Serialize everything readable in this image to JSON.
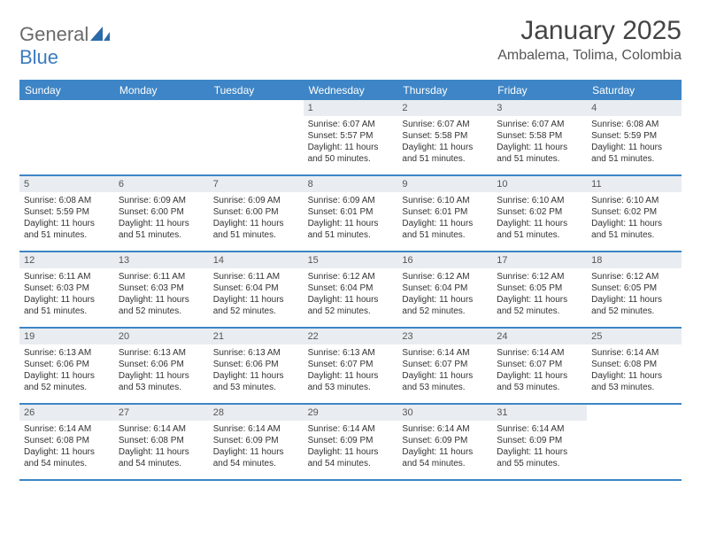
{
  "logo": {
    "text_gray": "General",
    "text_blue": "Blue"
  },
  "title": "January 2025",
  "location": "Ambalema, Tolima, Colombia",
  "header_bg": "#3d85c6",
  "daynum_bg": "#e9edf1",
  "border_color": "#3d85c6",
  "day_names": [
    "Sunday",
    "Monday",
    "Tuesday",
    "Wednesday",
    "Thursday",
    "Friday",
    "Saturday"
  ],
  "weeks": [
    [
      null,
      null,
      null,
      {
        "n": "1",
        "sunrise": "Sunrise: 6:07 AM",
        "sunset": "Sunset: 5:57 PM",
        "daylight": "Daylight: 11 hours and 50 minutes."
      },
      {
        "n": "2",
        "sunrise": "Sunrise: 6:07 AM",
        "sunset": "Sunset: 5:58 PM",
        "daylight": "Daylight: 11 hours and 51 minutes."
      },
      {
        "n": "3",
        "sunrise": "Sunrise: 6:07 AM",
        "sunset": "Sunset: 5:58 PM",
        "daylight": "Daylight: 11 hours and 51 minutes."
      },
      {
        "n": "4",
        "sunrise": "Sunrise: 6:08 AM",
        "sunset": "Sunset: 5:59 PM",
        "daylight": "Daylight: 11 hours and 51 minutes."
      }
    ],
    [
      {
        "n": "5",
        "sunrise": "Sunrise: 6:08 AM",
        "sunset": "Sunset: 5:59 PM",
        "daylight": "Daylight: 11 hours and 51 minutes."
      },
      {
        "n": "6",
        "sunrise": "Sunrise: 6:09 AM",
        "sunset": "Sunset: 6:00 PM",
        "daylight": "Daylight: 11 hours and 51 minutes."
      },
      {
        "n": "7",
        "sunrise": "Sunrise: 6:09 AM",
        "sunset": "Sunset: 6:00 PM",
        "daylight": "Daylight: 11 hours and 51 minutes."
      },
      {
        "n": "8",
        "sunrise": "Sunrise: 6:09 AM",
        "sunset": "Sunset: 6:01 PM",
        "daylight": "Daylight: 11 hours and 51 minutes."
      },
      {
        "n": "9",
        "sunrise": "Sunrise: 6:10 AM",
        "sunset": "Sunset: 6:01 PM",
        "daylight": "Daylight: 11 hours and 51 minutes."
      },
      {
        "n": "10",
        "sunrise": "Sunrise: 6:10 AM",
        "sunset": "Sunset: 6:02 PM",
        "daylight": "Daylight: 11 hours and 51 minutes."
      },
      {
        "n": "11",
        "sunrise": "Sunrise: 6:10 AM",
        "sunset": "Sunset: 6:02 PM",
        "daylight": "Daylight: 11 hours and 51 minutes."
      }
    ],
    [
      {
        "n": "12",
        "sunrise": "Sunrise: 6:11 AM",
        "sunset": "Sunset: 6:03 PM",
        "daylight": "Daylight: 11 hours and 51 minutes."
      },
      {
        "n": "13",
        "sunrise": "Sunrise: 6:11 AM",
        "sunset": "Sunset: 6:03 PM",
        "daylight": "Daylight: 11 hours and 52 minutes."
      },
      {
        "n": "14",
        "sunrise": "Sunrise: 6:11 AM",
        "sunset": "Sunset: 6:04 PM",
        "daylight": "Daylight: 11 hours and 52 minutes."
      },
      {
        "n": "15",
        "sunrise": "Sunrise: 6:12 AM",
        "sunset": "Sunset: 6:04 PM",
        "daylight": "Daylight: 11 hours and 52 minutes."
      },
      {
        "n": "16",
        "sunrise": "Sunrise: 6:12 AM",
        "sunset": "Sunset: 6:04 PM",
        "daylight": "Daylight: 11 hours and 52 minutes."
      },
      {
        "n": "17",
        "sunrise": "Sunrise: 6:12 AM",
        "sunset": "Sunset: 6:05 PM",
        "daylight": "Daylight: 11 hours and 52 minutes."
      },
      {
        "n": "18",
        "sunrise": "Sunrise: 6:12 AM",
        "sunset": "Sunset: 6:05 PM",
        "daylight": "Daylight: 11 hours and 52 minutes."
      }
    ],
    [
      {
        "n": "19",
        "sunrise": "Sunrise: 6:13 AM",
        "sunset": "Sunset: 6:06 PM",
        "daylight": "Daylight: 11 hours and 52 minutes."
      },
      {
        "n": "20",
        "sunrise": "Sunrise: 6:13 AM",
        "sunset": "Sunset: 6:06 PM",
        "daylight": "Daylight: 11 hours and 53 minutes."
      },
      {
        "n": "21",
        "sunrise": "Sunrise: 6:13 AM",
        "sunset": "Sunset: 6:06 PM",
        "daylight": "Daylight: 11 hours and 53 minutes."
      },
      {
        "n": "22",
        "sunrise": "Sunrise: 6:13 AM",
        "sunset": "Sunset: 6:07 PM",
        "daylight": "Daylight: 11 hours and 53 minutes."
      },
      {
        "n": "23",
        "sunrise": "Sunrise: 6:14 AM",
        "sunset": "Sunset: 6:07 PM",
        "daylight": "Daylight: 11 hours and 53 minutes."
      },
      {
        "n": "24",
        "sunrise": "Sunrise: 6:14 AM",
        "sunset": "Sunset: 6:07 PM",
        "daylight": "Daylight: 11 hours and 53 minutes."
      },
      {
        "n": "25",
        "sunrise": "Sunrise: 6:14 AM",
        "sunset": "Sunset: 6:08 PM",
        "daylight": "Daylight: 11 hours and 53 minutes."
      }
    ],
    [
      {
        "n": "26",
        "sunrise": "Sunrise: 6:14 AM",
        "sunset": "Sunset: 6:08 PM",
        "daylight": "Daylight: 11 hours and 54 minutes."
      },
      {
        "n": "27",
        "sunrise": "Sunrise: 6:14 AM",
        "sunset": "Sunset: 6:08 PM",
        "daylight": "Daylight: 11 hours and 54 minutes."
      },
      {
        "n": "28",
        "sunrise": "Sunrise: 6:14 AM",
        "sunset": "Sunset: 6:09 PM",
        "daylight": "Daylight: 11 hours and 54 minutes."
      },
      {
        "n": "29",
        "sunrise": "Sunrise: 6:14 AM",
        "sunset": "Sunset: 6:09 PM",
        "daylight": "Daylight: 11 hours and 54 minutes."
      },
      {
        "n": "30",
        "sunrise": "Sunrise: 6:14 AM",
        "sunset": "Sunset: 6:09 PM",
        "daylight": "Daylight: 11 hours and 54 minutes."
      },
      {
        "n": "31",
        "sunrise": "Sunrise: 6:14 AM",
        "sunset": "Sunset: 6:09 PM",
        "daylight": "Daylight: 11 hours and 55 minutes."
      },
      null
    ]
  ]
}
